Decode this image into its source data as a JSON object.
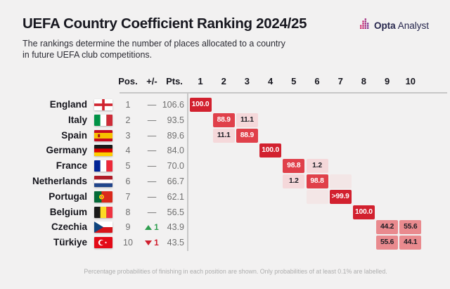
{
  "page": {
    "title": "UEFA Country Coefficient Ranking 2024/25",
    "subtitle_line1": "The rankings determine the number of places allocated to a country",
    "subtitle_line2": "in future UEFA club competitions.",
    "footnote": "Percentage probabilities of finishing in each position are shown. Only probabilities of at least 0.1% are labelled."
  },
  "logo": {
    "bold_text": "Opta",
    "regular_text": "Analyst"
  },
  "table": {
    "col_pos": "Pos.",
    "col_change": "+/-",
    "col_pts": "Pts.",
    "position_columns": [
      "1",
      "2",
      "3",
      "4",
      "5",
      "6",
      "7",
      "8",
      "9",
      "10"
    ]
  },
  "colors": {
    "background": "#f2f1f1",
    "cell_max": "#d2212f",
    "cell_high": "#e0404a",
    "cell_mid": "#e98a8e",
    "cell_low": "#f5d8da",
    "cell_trace": "#f3e6e6",
    "cell_text_dark": "#1b1b22",
    "cell_text_light": "#ffffff",
    "up_green": "#2f9e4f",
    "down_red": "#cf1f2e",
    "line_gray": "#c7c7c7"
  },
  "chart_data": {
    "type": "heatmap",
    "title": "UEFA Country Coefficient Ranking 2024/25",
    "columns": [
      "1",
      "2",
      "3",
      "4",
      "5",
      "6",
      "7",
      "8",
      "9",
      "10"
    ],
    "note": "Percentage probabilities of finishing in each position are shown. Only probabilities of at least 0.1% are labelled.",
    "rows": [
      {
        "country": "England",
        "flag": "england",
        "pos": "1",
        "change_dir": "same",
        "change_label": "—",
        "pts": "106.6",
        "cells": [
          {
            "col": 1,
            "label": "100.0",
            "level": "max"
          }
        ]
      },
      {
        "country": "Italy",
        "flag": "italy",
        "pos": "2",
        "change_dir": "same",
        "change_label": "—",
        "pts": "93.5",
        "cells": [
          {
            "col": 2,
            "label": "88.9",
            "level": "high"
          },
          {
            "col": 3,
            "label": "11.1",
            "level": "low"
          }
        ]
      },
      {
        "country": "Spain",
        "flag": "spain",
        "pos": "3",
        "change_dir": "same",
        "change_label": "—",
        "pts": "89.6",
        "cells": [
          {
            "col": 2,
            "label": "11.1",
            "level": "low"
          },
          {
            "col": 3,
            "label": "88.9",
            "level": "high"
          }
        ]
      },
      {
        "country": "Germany",
        "flag": "germany",
        "pos": "4",
        "change_dir": "same",
        "change_label": "—",
        "pts": "84.0",
        "cells": [
          {
            "col": 4,
            "label": "100.0",
            "level": "max"
          }
        ]
      },
      {
        "country": "France",
        "flag": "france",
        "pos": "5",
        "change_dir": "same",
        "change_label": "—",
        "pts": "70.0",
        "cells": [
          {
            "col": 5,
            "label": "98.8",
            "level": "high"
          },
          {
            "col": 6,
            "label": "1.2",
            "level": "low"
          }
        ]
      },
      {
        "country": "Netherlands",
        "flag": "netherlands",
        "pos": "6",
        "change_dir": "same",
        "change_label": "—",
        "pts": "66.7",
        "cells": [
          {
            "col": 5,
            "label": "1.2",
            "level": "low"
          },
          {
            "col": 6,
            "label": "98.8",
            "level": "high"
          },
          {
            "col": 7,
            "label": "",
            "level": "trace"
          }
        ]
      },
      {
        "country": "Portugal",
        "flag": "portugal",
        "pos": "7",
        "change_dir": "same",
        "change_label": "—",
        "pts": "62.1",
        "cells": [
          {
            "col": 6,
            "label": "",
            "level": "trace"
          },
          {
            "col": 7,
            "label": ">99.9",
            "level": "max"
          }
        ]
      },
      {
        "country": "Belgium",
        "flag": "belgium",
        "pos": "8",
        "change_dir": "same",
        "change_label": "—",
        "pts": "56.5",
        "cells": [
          {
            "col": 8,
            "label": "100.0",
            "level": "max"
          }
        ]
      },
      {
        "country": "Czechia",
        "flag": "czechia",
        "pos": "9",
        "change_dir": "up",
        "change_label": "1",
        "pts": "43.9",
        "cells": [
          {
            "col": 9,
            "label": "44.2",
            "level": "mid"
          },
          {
            "col": 10,
            "label": "55.6",
            "level": "mid"
          }
        ]
      },
      {
        "country": "Türkiye",
        "flag": "turkiye",
        "pos": "10",
        "change_dir": "down",
        "change_label": "1",
        "pts": "43.5",
        "cells": [
          {
            "col": 9,
            "label": "55.6",
            "level": "mid"
          },
          {
            "col": 10,
            "label": "44.1",
            "level": "mid"
          }
        ]
      }
    ]
  }
}
